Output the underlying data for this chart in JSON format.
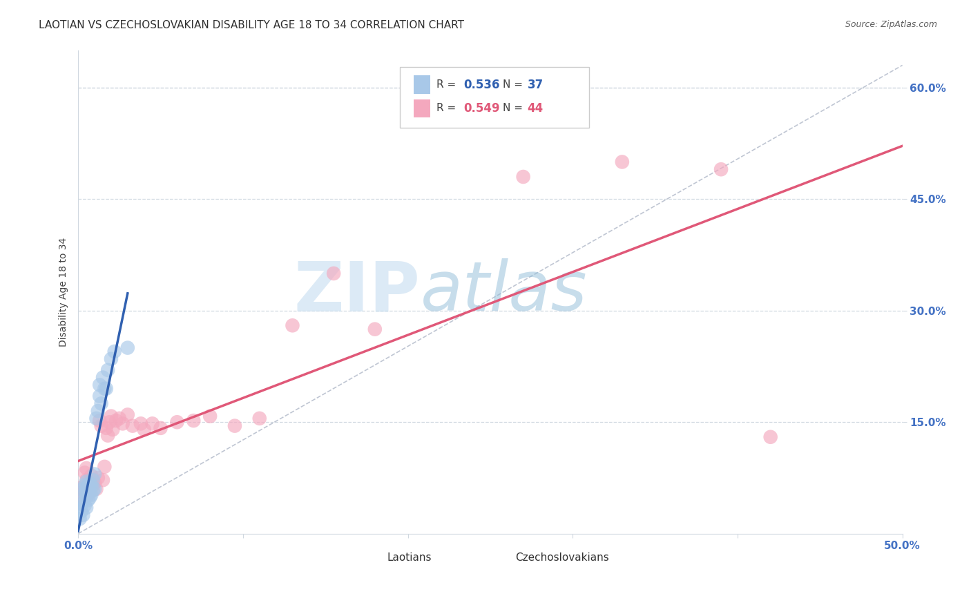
{
  "title": "LAOTIAN VS CZECHOSLOVAKIAN DISABILITY AGE 18 TO 34 CORRELATION CHART",
  "source": "Source: ZipAtlas.com",
  "ylabel": "Disability Age 18 to 34",
  "xlim": [
    0.0,
    0.5
  ],
  "ylim": [
    0.0,
    0.65
  ],
  "legend_r_blue": "0.536",
  "legend_n_blue": "37",
  "legend_r_pink": "0.549",
  "legend_n_pink": "44",
  "blue_color": "#a8c8e8",
  "pink_color": "#f4a8be",
  "blue_line_color": "#3060b0",
  "pink_line_color": "#e05878",
  "diag_color": "#b0b8c8",
  "watermark_zip": "ZIP",
  "watermark_atlas": "atlas",
  "grid_color": "#d0d8e0",
  "bg_color": "#ffffff",
  "title_color": "#303030",
  "tick_color": "#4472c4",
  "source_color": "#606060",
  "laotians_x": [
    0.001,
    0.002,
    0.002,
    0.003,
    0.003,
    0.003,
    0.004,
    0.004,
    0.004,
    0.005,
    0.005,
    0.005,
    0.005,
    0.006,
    0.006,
    0.006,
    0.007,
    0.007,
    0.007,
    0.008,
    0.008,
    0.009,
    0.009,
    0.01,
    0.01,
    0.011,
    0.012,
    0.013,
    0.013,
    0.014,
    0.015,
    0.016,
    0.017,
    0.018,
    0.02,
    0.022,
    0.03
  ],
  "laotians_y": [
    0.02,
    0.03,
    0.04,
    0.025,
    0.045,
    0.06,
    0.038,
    0.055,
    0.065,
    0.035,
    0.05,
    0.06,
    0.07,
    0.045,
    0.055,
    0.065,
    0.048,
    0.058,
    0.068,
    0.052,
    0.065,
    0.058,
    0.072,
    0.06,
    0.08,
    0.155,
    0.165,
    0.185,
    0.2,
    0.175,
    0.21,
    0.195,
    0.195,
    0.22,
    0.235,
    0.245,
    0.25
  ],
  "czechoslovakians_x": [
    0.002,
    0.003,
    0.004,
    0.004,
    0.005,
    0.005,
    0.006,
    0.007,
    0.008,
    0.008,
    0.009,
    0.01,
    0.011,
    0.012,
    0.013,
    0.014,
    0.015,
    0.016,
    0.017,
    0.018,
    0.019,
    0.02,
    0.021,
    0.023,
    0.025,
    0.027,
    0.03,
    0.033,
    0.038,
    0.04,
    0.045,
    0.05,
    0.06,
    0.07,
    0.08,
    0.095,
    0.11,
    0.13,
    0.155,
    0.18,
    0.27,
    0.33,
    0.39,
    0.42
  ],
  "czechoslovakians_y": [
    0.062,
    0.048,
    0.058,
    0.082,
    0.072,
    0.088,
    0.052,
    0.058,
    0.062,
    0.078,
    0.065,
    0.068,
    0.06,
    0.075,
    0.152,
    0.145,
    0.072,
    0.09,
    0.142,
    0.132,
    0.15,
    0.158,
    0.14,
    0.152,
    0.155,
    0.148,
    0.16,
    0.145,
    0.148,
    0.14,
    0.148,
    0.142,
    0.15,
    0.152,
    0.158,
    0.145,
    0.155,
    0.28,
    0.35,
    0.275,
    0.48,
    0.5,
    0.49,
    0.13
  ]
}
